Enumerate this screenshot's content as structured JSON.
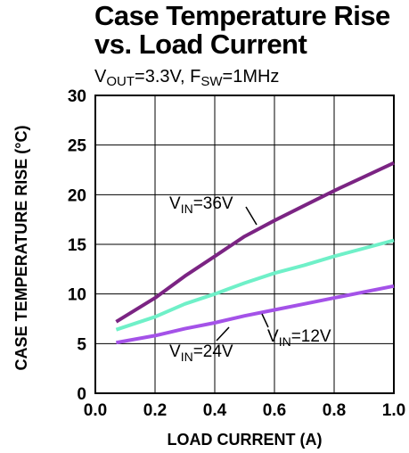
{
  "chart_data": {
    "type": "line",
    "title_line1": "Case Temperature Rise",
    "title_line2": "vs. Load Current",
    "subtitle": {
      "v": "V",
      "v_sub": "OUT",
      "v_val": "=3.3V, ",
      "f": "F",
      "f_sub": "SW",
      "f_val": "=1MHz"
    },
    "xlabel": "LOAD CURRENT (A)",
    "ylabel": "CASE TEMPERATURE RISE (°C)",
    "xlim": [
      0,
      1.0
    ],
    "ylim": [
      0,
      30
    ],
    "xticks": [
      0,
      0.2,
      0.4,
      0.6,
      0.8,
      1.0
    ],
    "xtick_labels": [
      "0.0",
      "0.2",
      "0.4",
      "0.6",
      "0.8",
      "1.0"
    ],
    "yticks": [
      0,
      5,
      10,
      15,
      20,
      25,
      30
    ],
    "ytick_labels": [
      "0",
      "5",
      "10",
      "15",
      "20",
      "25",
      "30"
    ],
    "grid": true,
    "series": [
      {
        "label": {
          "main": "V",
          "sub": "IN",
          "rest": "=36V"
        },
        "color": "#7b2483",
        "x": [
          0.07,
          0.2,
          0.3,
          0.4,
          0.5,
          0.6,
          0.7,
          0.8,
          0.9,
          1.0
        ],
        "y": [
          7.2,
          9.6,
          11.8,
          13.8,
          15.8,
          17.4,
          18.9,
          20.4,
          21.8,
          23.2
        ]
      },
      {
        "label": {
          "main": "V",
          "sub": "IN",
          "rest": "=24V"
        },
        "color": "#6ff0c8",
        "x": [
          0.07,
          0.2,
          0.3,
          0.4,
          0.5,
          0.6,
          0.7,
          0.8,
          0.9,
          1.0
        ],
        "y": [
          6.4,
          7.7,
          9.0,
          10.0,
          11.1,
          12.1,
          12.9,
          13.8,
          14.6,
          15.4
        ]
      },
      {
        "label": {
          "main": "V",
          "sub": "IN",
          "rest": "=12V"
        },
        "color": "#a452e8",
        "x": [
          0.07,
          0.2,
          0.3,
          0.4,
          0.5,
          0.6,
          0.7,
          0.8,
          0.9,
          1.0
        ],
        "y": [
          5.1,
          5.8,
          6.5,
          7.1,
          7.8,
          8.4,
          9.0,
          9.6,
          10.2,
          10.8
        ]
      }
    ]
  }
}
